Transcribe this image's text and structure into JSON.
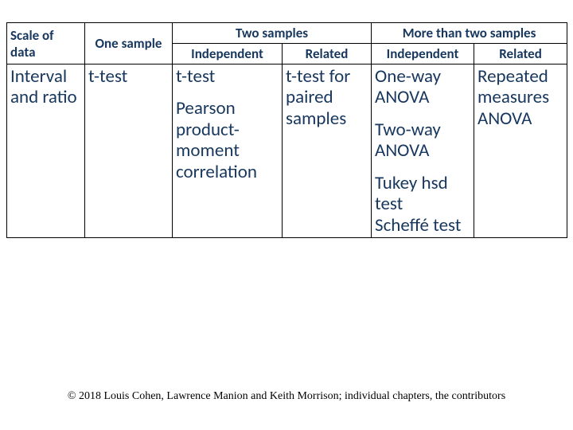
{
  "table": {
    "headers": {
      "scale": "Scale of data",
      "one_sample": "One sample",
      "two_samples": "Two samples",
      "more_than_two": "More than two samples",
      "independent": "Independent",
      "related": "Related"
    },
    "row": {
      "label": "Interval and ratio",
      "one_sample": "t-test",
      "two_ind_1": "t-test",
      "two_ind_2": "Pearson product-moment correlation",
      "two_rel": "t-test for paired samples",
      "more_ind_1": "One-way ANOVA",
      "more_ind_2": "Two-way ANOVA",
      "more_ind_3": "Tukey hsd test",
      "more_ind_4": "Scheffé test",
      "more_rel": "Repeated measures ANOVA"
    }
  },
  "footer": "© 2018 Louis Cohen, Lawrence Manion and Keith Morrison; individual chapters, the contributors",
  "colors": {
    "text": "#17375e",
    "border": "#000000",
    "background": "#ffffff"
  }
}
